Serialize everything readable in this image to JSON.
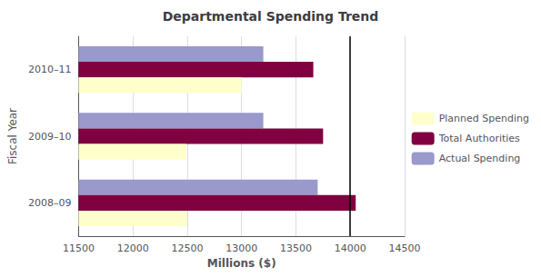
{
  "chart_data": {
    "type": "bar",
    "orientation": "horizontal",
    "title": "Departmental Spending Trend",
    "xlabel": "Millions ($)",
    "ylabel": "Fiscal Year",
    "categories": [
      "2008–09",
      "2009–10",
      "2010–11"
    ],
    "series": [
      {
        "name": "Planned Spending",
        "color": "#FFFFCC",
        "values": [
          12500,
          12490,
          13000
        ]
      },
      {
        "name": "Total Authorities",
        "color": "#800040",
        "values": [
          14050,
          13750,
          13660
        ]
      },
      {
        "name": "Actual Spending",
        "color": "#9999CC",
        "values": [
          13700,
          13200,
          13200
        ]
      }
    ],
    "xlim": [
      11500,
      14500
    ],
    "xticks": [
      11500,
      12000,
      12500,
      13000,
      13500,
      14000,
      14500
    ],
    "vline": 14000,
    "grid": true,
    "legend": "right"
  }
}
